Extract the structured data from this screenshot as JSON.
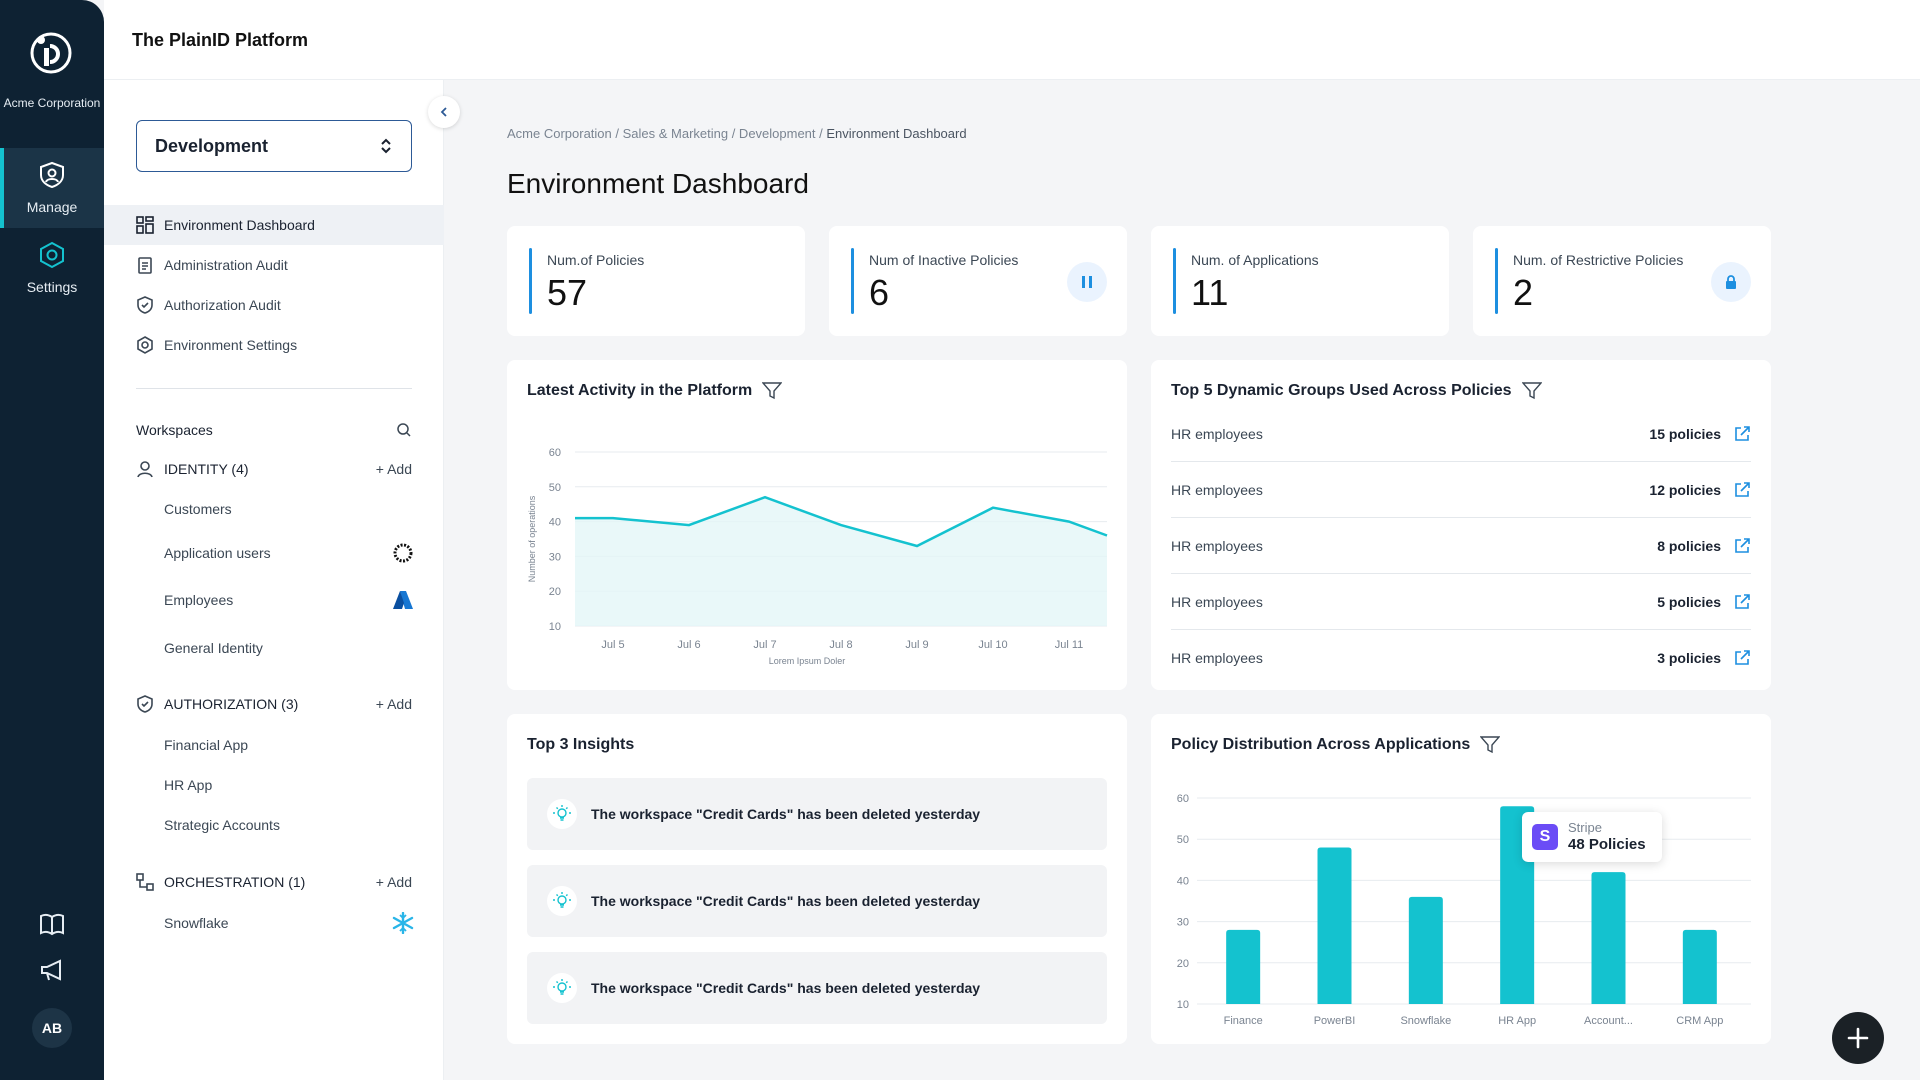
{
  "app": {
    "title": "The PlainID Platform",
    "org": "Acme Corporation"
  },
  "rail": {
    "items": [
      {
        "label": "Manage",
        "icon": "shield-icon"
      },
      {
        "label": "Settings",
        "icon": "hexagon-icon"
      }
    ],
    "avatar": "AB"
  },
  "panel": {
    "environment": "Development",
    "menu": [
      {
        "label": "Environment Dashboard",
        "icon": "dashboard-icon"
      },
      {
        "label": "Administration Audit",
        "icon": "clipboard-icon"
      },
      {
        "label": "Authorization Audit",
        "icon": "shield-check-icon"
      },
      {
        "label": "Environment Settings",
        "icon": "settings-hex-icon"
      }
    ],
    "workspaces_label": "Workspaces",
    "add_label": "Add",
    "groups": [
      {
        "title": "IDENTITY (4)",
        "items": [
          "Customers",
          "Application users",
          "Employees",
          "General Identity"
        ]
      },
      {
        "title": "AUTHORIZATION (3)",
        "items": [
          "Financial App",
          "HR App",
          "Strategic Accounts"
        ]
      },
      {
        "title": "ORCHESTRATION (1)",
        "items": [
          "Snowflake"
        ]
      }
    ]
  },
  "breadcrumb": {
    "path": "Acme Corporation / Sales & Marketing / Development / ",
    "current": "Environment Dashboard"
  },
  "page_title": "Environment Dashboard",
  "kpis": [
    {
      "label": "Num.of Policies",
      "value": "57"
    },
    {
      "label": "Num of Inactive Policies",
      "value": "6",
      "icon": "pause-icon"
    },
    {
      "label": "Num. of Applications",
      "value": "11"
    },
    {
      "label": "Num. of Restrictive Policies",
      "value": "2",
      "icon": "lock-icon"
    }
  ],
  "activity": {
    "title": "Latest Activity in the Platform"
  },
  "groups_card": {
    "title": "Top 5 Dynamic Groups Used Across Policies",
    "rows": [
      {
        "name": "HR employees",
        "count": "15 policies"
      },
      {
        "name": "HR employees",
        "count": "12 policies"
      },
      {
        "name": "HR employees",
        "count": "8 policies"
      },
      {
        "name": "HR employees",
        "count": "5 policies"
      },
      {
        "name": "HR employees",
        "count": "3 policies"
      }
    ]
  },
  "insights": {
    "title": "Top 3 Insights",
    "items": [
      "The workspace \"Credit Cards\" has been deleted yesterday",
      "The workspace \"Credit Cards\" has been deleted yesterday",
      "The workspace \"Credit Cards\" has been deleted yesterday"
    ]
  },
  "distribution": {
    "title": "Policy Distribution Across Applications",
    "tooltip": {
      "name": "Stripe",
      "value": "48 Policies",
      "icon_letter": "S"
    }
  },
  "colors": {
    "accent": "#14c2cf",
    "rail": "#0e2233",
    "kpi_bar": "#1d8fe0"
  },
  "chart_data": [
    {
      "type": "area",
      "title": "Latest Activity in the Platform",
      "xlabel": "Lorem Ipsum Doler",
      "ylabel": "Number of operations",
      "x": [
        "Jul 5",
        "Jul 6",
        "Jul 7",
        "Jul 8",
        "Jul 9",
        "Jul 10",
        "Jul 11"
      ],
      "yticks": [
        10,
        20,
        30,
        40,
        50,
        60
      ],
      "ylim": [
        10,
        60
      ],
      "series": [
        {
          "values": [
            41,
            39,
            47,
            39,
            33,
            44,
            40
          ]
        }
      ],
      "grid": true
    },
    {
      "type": "bar",
      "title": "Policy Distribution Across Applications",
      "categories": [
        "Finance",
        "PowerBI",
        "Snowflake",
        "HR App",
        "Account...",
        "CRM App"
      ],
      "values": [
        28,
        48,
        36,
        58,
        42,
        28
      ],
      "yticks": [
        10,
        20,
        30,
        40,
        50,
        60
      ],
      "ylim": [
        10,
        60
      ],
      "grid": true
    }
  ]
}
